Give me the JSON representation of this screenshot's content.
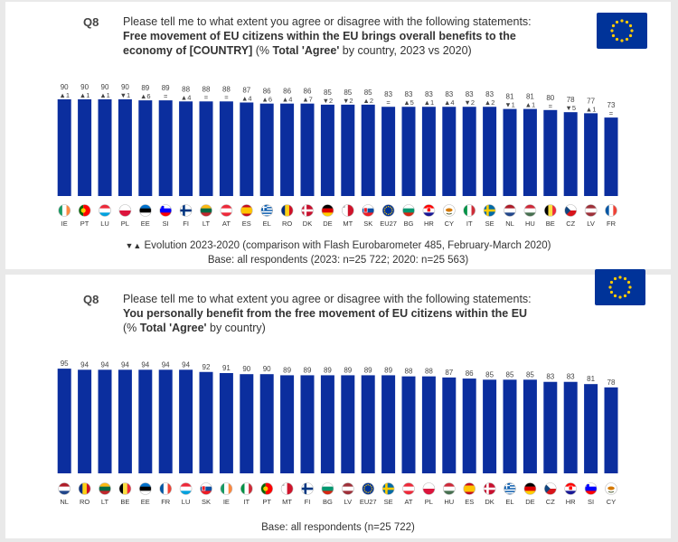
{
  "colors": {
    "bar": "#0b2e9e",
    "text": "#333333",
    "flag_blue": "#003399",
    "flag_star": "#ffcc00"
  },
  "charts": [
    {
      "question_number": "Q8",
      "line1": "Please tell me to what extent you agree or disagree with the following statements:",
      "line2": "Free movement of EU citizens within the EU brings overall benefits to the",
      "line3_bold": "economy of [COUNTRY]",
      "line3_pre": " (% ",
      "line3_bold2": "Total 'Agree'",
      "line3_post": " by country, 2023 vs 2020)",
      "legend": "Evolution 2023-2020 (comparison with Flash Eurobarometer 485, February-March 2020)",
      "base": "Base: all respondents (2023: n=25 722; 2020: n=25 563)"
    },
    {
      "question_number": "Q8",
      "line1": "Please tell me to what extent you agree or disagree with the following statements:",
      "line2": "You personally benefit from the free movement of EU citizens within the EU",
      "line3_pre": "(% ",
      "line3_bold2": "Total 'Agree'",
      "line3_post": " by country)",
      "base": "Base: all respondents (n=25 722)"
    }
  ],
  "chart_data": [
    {
      "type": "bar",
      "title": "Free movement of EU citizens within the EU brings overall benefits to the economy of [COUNTRY] (% Total 'Agree' by country, 2023 vs 2020)",
      "ylim": [
        0,
        100
      ],
      "categories": [
        "IE",
        "PT",
        "LU",
        "PL",
        "EE",
        "SI",
        "FI",
        "LT",
        "AT",
        "ES",
        "EL",
        "RO",
        "DK",
        "DE",
        "MT",
        "SK",
        "EU27",
        "BG",
        "HR",
        "CY",
        "IT",
        "SE",
        "NL",
        "HU",
        "BE",
        "CZ",
        "LV",
        "FR"
      ],
      "values": [
        90,
        90,
        90,
        90,
        89,
        89,
        88,
        88,
        88,
        87,
        86,
        86,
        86,
        85,
        85,
        85,
        83,
        83,
        83,
        83,
        83,
        83,
        81,
        81,
        80,
        78,
        77,
        73
      ],
      "evolution": [
        "▲1",
        "▲1",
        "▲1",
        "▼1",
        "▲6",
        "=",
        "▲4",
        "=",
        "=",
        "▲4",
        "▲6",
        "▲4",
        "▲7",
        "▼2",
        "▼2",
        "▲2",
        "=",
        "▲5",
        "▲1",
        "▲4",
        "▼2",
        "▲2",
        "▼1",
        "▲1",
        "=",
        "▼5",
        "▲1",
        "="
      ]
    },
    {
      "type": "bar",
      "title": "You personally benefit from the free movement of EU citizens within the EU (% Total 'Agree' by country)",
      "ylim": [
        0,
        100
      ],
      "categories": [
        "NL",
        "RO",
        "LT",
        "BE",
        "EE",
        "FR",
        "LU",
        "SK",
        "IE",
        "IT",
        "PT",
        "MT",
        "FI",
        "BG",
        "LV",
        "EU27",
        "SE",
        "AT",
        "PL",
        "HU",
        "ES",
        "DK",
        "EL",
        "DE",
        "CZ",
        "HR",
        "SI",
        "CY"
      ],
      "values": [
        95,
        94,
        94,
        94,
        94,
        94,
        94,
        92,
        91,
        90,
        90,
        89,
        89,
        89,
        89,
        89,
        89,
        88,
        88,
        87,
        86,
        85,
        85,
        85,
        83,
        83,
        81,
        78
      ]
    }
  ]
}
